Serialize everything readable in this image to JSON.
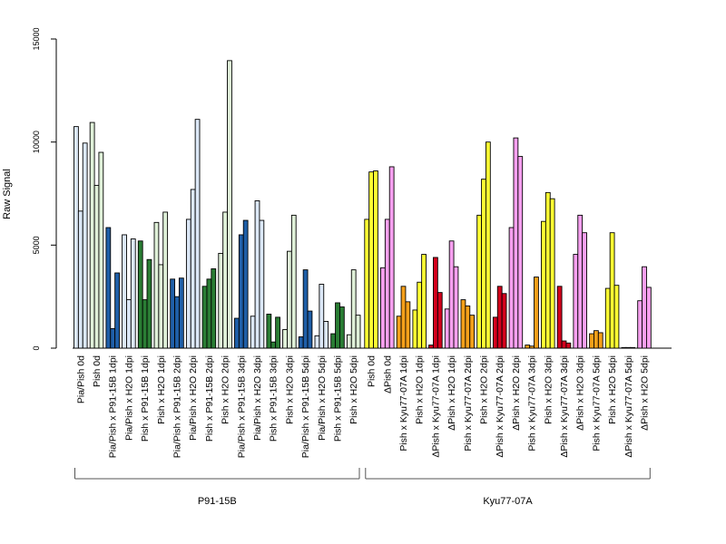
{
  "chart_data": {
    "type": "bar",
    "ylabel": "Raw Signal",
    "ylim": [
      0,
      15000
    ],
    "yticks": [
      0,
      5000,
      10000,
      15000
    ],
    "grid": false,
    "legend": "none",
    "categories": [
      "Pia/Pish 0d",
      "Pish 0d",
      "Pia/Pish x P91-15B 1dpi",
      "Pia/Pish x H2O 1dpi",
      "Pish x P91-15B 1dpi",
      "Pish x H2O 1dpi",
      "Pia/Pish x P91-15B 2dpi",
      "Pia/Pish x H2O 2dpi",
      "Pish x P91-15B 2dpi",
      "Pish x H2O 2dpi",
      "Pia/Pish x P91-15B 3dpi",
      "Pia/Pish x H2O 3dpi",
      "Pish x P91-15B 3dpi",
      "Pish x H2O 3dpi",
      "Pia/Pish x P91-15B 5dpi",
      "Pia/Pish x H2O 5dpi",
      "Pish x P91-15B 5dpi",
      "Pish x H2O 5dpi",
      "Pish 0d",
      "ΔPish 0d",
      "Pish x Kyu77-07A 1dpi",
      "Pish x H2O 1dpi",
      "ΔPish x Kyu77-07A 1dpi",
      "ΔPish x H2O 1dpi",
      "Pish x Kyu77-07A 2dpi",
      "Pish x H2O 2dpi",
      "ΔPish x Kyu77-07A 2dpi",
      "ΔPish x H2O 2dpi",
      "Pish x Kyu77-07A 3dpi",
      "Pish x H2O 3dpi",
      "ΔPish x Kyu77-07A 3dpi",
      "ΔPish x H2O 3dpi",
      "Pish x Kyu77-07A 5dpi",
      "Pish x H2O 5dpi",
      "ΔPish x Kyu77-07A 5dpi",
      "ΔPish x H2O 5dpi"
    ],
    "colors": [
      "#dce8f7",
      "#dff0d8",
      "#1f5fa8",
      "#dce8f7",
      "#2a7d34",
      "#dff0d8",
      "#1f5fa8",
      "#dce8f7",
      "#2a7d34",
      "#dff0d8",
      "#1f5fa8",
      "#dce8f7",
      "#2a7d34",
      "#dff0d8",
      "#1f5fa8",
      "#dce8f7",
      "#2a7d34",
      "#dff0d8",
      "#ffff33",
      "#f8a0f0",
      "#f5a01a",
      "#ffff33",
      "#d4001c",
      "#f8a0f0",
      "#f5a01a",
      "#ffff33",
      "#d4001c",
      "#f8a0f0",
      "#f5a01a",
      "#ffff33",
      "#d4001c",
      "#f8a0f0",
      "#f5a01a",
      "#ffff33",
      "#d4001c",
      "#f8a0f0"
    ],
    "values": [
      [
        10750,
        6650,
        9950
      ],
      [
        10950,
        7900,
        9500
      ],
      [
        5850,
        950,
        3650
      ],
      [
        5500,
        2350,
        5300
      ],
      [
        5200,
        2350,
        4300
      ],
      [
        6100,
        4050,
        6600
      ],
      [
        3350,
        2500,
        3400
      ],
      [
        6250,
        7700,
        11100
      ],
      [
        3000,
        3350,
        3850
      ],
      [
        4600,
        6600,
        13950
      ],
      [
        1450,
        5500,
        6200
      ],
      [
        1550,
        7150,
        6200
      ],
      [
        1650,
        300,
        1500
      ],
      [
        900,
        4700,
        6450
      ],
      [
        550,
        3800,
        1800
      ],
      [
        600,
        3100,
        1300
      ],
      [
        700,
        2200,
        2000
      ],
      [
        650,
        3800,
        1600
      ],
      [
        6250,
        8550,
        8600
      ],
      [
        3900,
        6250,
        8800
      ],
      [
        1550,
        3000,
        2250
      ],
      [
        1850,
        3200,
        4550
      ],
      [
        150,
        4400,
        2700
      ],
      [
        1900,
        5200,
        3950
      ],
      [
        2350,
        2050,
        1600
      ],
      [
        6450,
        8200,
        10000
      ],
      [
        1500,
        3000,
        2650
      ],
      [
        5850,
        10200,
        9300
      ],
      [
        150,
        100,
        3450
      ],
      [
        6150,
        7550,
        7250
      ],
      [
        3000,
        350,
        250
      ],
      [
        4550,
        6450,
        5600
      ],
      [
        700,
        850,
        750
      ],
      [
        2900,
        5600,
        3050
      ],
      [
        30,
        30,
        30
      ],
      [
        2300,
        3950,
        2950
      ]
    ],
    "groups": [
      {
        "label": "P91-15B",
        "start": 0,
        "end": 17
      },
      {
        "label": "Kyu77-07A",
        "start": 18,
        "end": 35
      }
    ]
  }
}
